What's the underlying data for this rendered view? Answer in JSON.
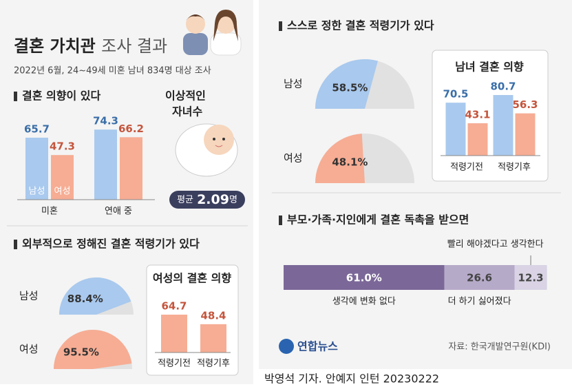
{
  "header": {
    "title_bold": "결혼 가치관",
    "title_rest": "조사 결과",
    "subtitle": "2022년 6월, 24~49세 미혼 남녀 834명 대상 조사"
  },
  "ideal_children": {
    "title": [
      "이상적인",
      "자녀수"
    ],
    "label": "평균",
    "value": 2.09,
    "unit": "명"
  },
  "chart_data": [
    {
      "type": "bar",
      "title": "결혼 의향이 있다",
      "categories": [
        "미혼",
        "연애 중"
      ],
      "ylim": [
        0,
        100
      ],
      "series": [
        {
          "name": "남성",
          "color": "#a9c9ee",
          "label_color": "#3a6ea8",
          "values": [
            65.7,
            74.3
          ]
        },
        {
          "name": "여성",
          "color": "#f6ad94",
          "label_color": "#c4553d",
          "values": [
            47.3,
            66.2
          ]
        }
      ]
    },
    {
      "type": "gauge",
      "title": "외부적으로 정해진 결혼 적령기가 있다",
      "categories": [
        "남성",
        "여성"
      ],
      "values": [
        88.4,
        95.5
      ],
      "value_labels": [
        "88.4%",
        "95.5%"
      ],
      "colors": [
        "#a9c9ee",
        "#f6ad94"
      ],
      "ylim": [
        0,
        100
      ]
    },
    {
      "type": "bar",
      "title": "여성의 결혼 의향",
      "categories": [
        "적령기전",
        "적령기후"
      ],
      "ylim": [
        0,
        100
      ],
      "series": [
        {
          "color": "#f6ad94",
          "label_color": "#c4553d",
          "values": [
            64.7,
            48.4
          ]
        }
      ]
    },
    {
      "type": "gauge",
      "title": "스스로 정한 결혼 적령기가 있다",
      "categories": [
        "남성",
        "여성"
      ],
      "values": [
        58.5,
        48.1
      ],
      "value_labels": [
        "58.5%",
        "48.1%"
      ],
      "colors": [
        "#a9c9ee",
        "#f6ad94"
      ],
      "ylim": [
        0,
        100
      ]
    },
    {
      "type": "bar",
      "title": "남녀 결혼 의향",
      "categories": [
        "적령기전",
        "적령기후"
      ],
      "ylim": [
        0,
        100
      ],
      "series": [
        {
          "color": "#a9c9ee",
          "label_color": "#3a6ea8",
          "values": [
            70.5,
            80.7
          ]
        },
        {
          "color": "#f6ad94",
          "label_color": "#c4553d",
          "values": [
            43.1,
            56.3
          ]
        }
      ]
    },
    {
      "type": "stackedbar",
      "title": "부모·가족·지인에게 결혼 독촉을 받으면",
      "xlim": [
        0,
        100
      ],
      "series": [
        {
          "name": "생각에 변화 없다",
          "color": "#7b6898",
          "values": [
            61.0
          ],
          "value_labels": [
            "61.0%"
          ]
        },
        {
          "name": "더 하기 싫어졌다",
          "color": "#b6aac9",
          "values": [
            26.6
          ]
        },
        {
          "name": "빨리 해야겠다고 생각한다",
          "color": "#d9d3e5",
          "values": [
            12.3
          ]
        }
      ]
    }
  ],
  "footer": {
    "logo": "연합뉴스",
    "source": "자료: 한국개발연구원(KDI)",
    "credit": "박영석 기자. 안예지 인턴  20230222"
  }
}
